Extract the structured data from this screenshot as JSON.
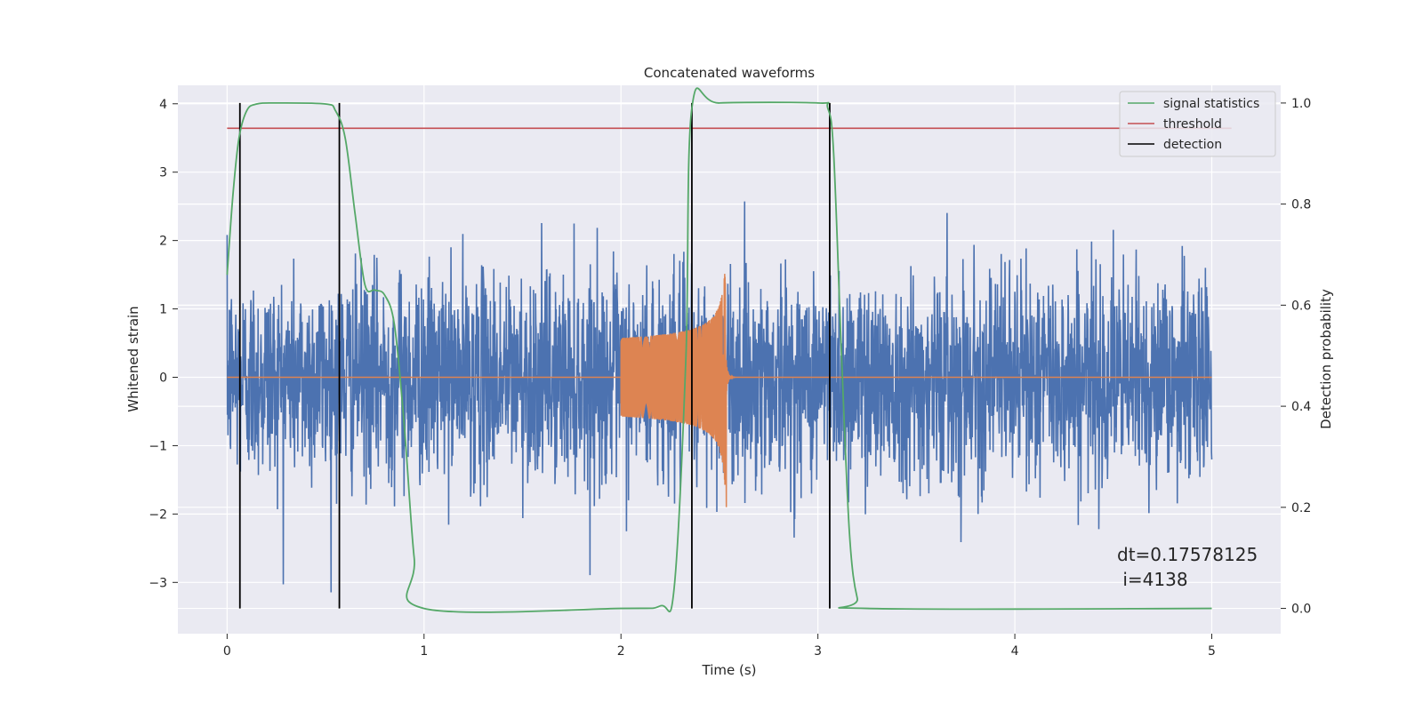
{
  "chart_data": {
    "type": "line",
    "title": "Concatenated waveforms",
    "xlabel": "Time (s)",
    "ylabel": "Whitened strain",
    "y2label": "Detection probability",
    "xlim": [
      -0.25,
      5.35
    ],
    "ylim": [
      -3.75,
      4.27
    ],
    "y2lim": [
      -0.05,
      1.035
    ],
    "xticks": [
      0,
      1,
      2,
      3,
      4,
      5
    ],
    "yticks": [
      -3,
      -2,
      -1,
      0,
      1,
      2,
      3,
      4
    ],
    "y2ticks": [
      0.0,
      0.2,
      0.4,
      0.6,
      0.8,
      1.0
    ],
    "xtick_labels": [
      "0",
      "1",
      "2",
      "3",
      "4",
      "5"
    ],
    "ytick_labels": [
      "−3",
      "−2",
      "−1",
      "0",
      "1",
      "2",
      "3",
      "4"
    ],
    "y2tick_labels": [
      "0.0",
      "0.2",
      "0.4",
      "0.6",
      "0.8",
      "1.0"
    ],
    "grid": true,
    "legend_position": "top-right",
    "legend": [
      "signal statistics",
      "threshold",
      "detection"
    ],
    "colors": {
      "noise": "#4c72b0",
      "injected_signal": "#dd8452",
      "signal_statistics": "#55a868",
      "threshold": "#c44e52",
      "detection": "#000000",
      "axes_bg": "#eaeaf2",
      "grid": "#ffffff"
    },
    "series": [
      {
        "name": "",
        "role": "noise",
        "axis": "left",
        "x_range": [
          0,
          5
        ],
        "amplitude_std": 0.75,
        "max_abs": 3.8
      },
      {
        "name": "",
        "role": "injected_signal",
        "axis": "left",
        "x_range": [
          2.0,
          2.55
        ],
        "peak_time": 2.53,
        "peak_amplitude": 1.7,
        "min_amplitude": -1.9
      },
      {
        "name": "signal statistics",
        "axis": "right",
        "x": [
          0.0,
          0.03,
          0.06,
          0.1,
          0.15,
          0.25,
          0.5,
          0.55,
          0.6,
          0.65,
          0.7,
          0.75,
          0.8,
          0.85,
          0.9,
          0.95,
          1.0,
          2.0,
          2.2,
          2.27,
          2.33,
          2.36,
          2.5,
          3.0,
          3.05,
          3.08,
          3.12,
          3.16,
          3.2,
          3.25,
          5.0
        ],
        "values": [
          0.66,
          0.82,
          0.93,
          0.985,
          0.998,
          1.0,
          0.998,
          0.985,
          0.93,
          0.78,
          0.64,
          0.63,
          0.62,
          0.56,
          0.36,
          0.1,
          0.0,
          0.0,
          0.005,
          0.04,
          0.5,
          0.99,
          1.0,
          1.0,
          0.99,
          0.9,
          0.5,
          0.15,
          0.02,
          0.0,
          0.0
        ]
      },
      {
        "name": "threshold",
        "axis": "right",
        "x": [
          0,
          5.1
        ],
        "values": [
          0.95,
          0.95
        ]
      },
      {
        "name": "detection",
        "axis": "right",
        "x": [
          0.065,
          0.57,
          2.36,
          3.06
        ],
        "values": [
          1.0,
          1.0,
          1.0,
          1.0
        ]
      }
    ],
    "annotation": {
      "text_line1": "dt=0.17578125",
      "text_line2": " i=4138"
    }
  }
}
